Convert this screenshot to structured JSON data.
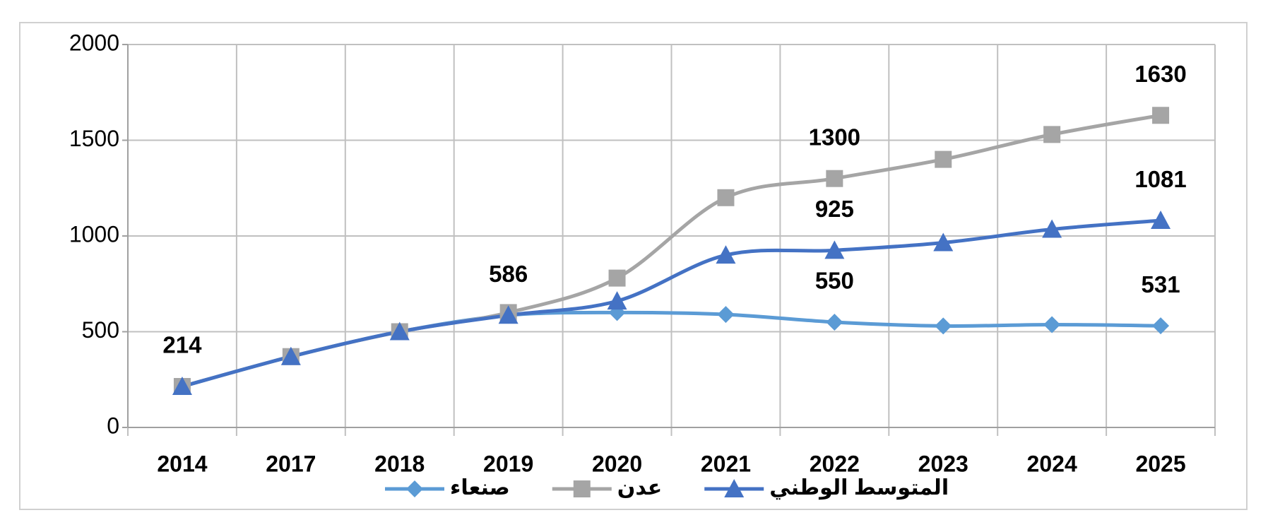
{
  "chart_data": {
    "type": "line",
    "categories": [
      "2014",
      "2017",
      "2018",
      "2019",
      "2020",
      "2021",
      "2022",
      "2023",
      "2024",
      "2025"
    ],
    "series": [
      {
        "name": "صنعاء",
        "color": "#5b9bd5",
        "marker": "diamond",
        "values": [
          214,
          370,
          500,
          586,
          600,
          590,
          550,
          530,
          537,
          531
        ],
        "value_labels": [
          "214",
          null,
          null,
          "586",
          null,
          null,
          "550",
          null,
          null,
          "531"
        ]
      },
      {
        "name": "عدن",
        "color": "#a5a5a5",
        "marker": "square",
        "values": [
          214,
          370,
          500,
          600,
          780,
          1200,
          1300,
          1400,
          1530,
          1630
        ],
        "value_labels": [
          null,
          null,
          null,
          null,
          null,
          null,
          "1300",
          null,
          null,
          "1630"
        ]
      },
      {
        "name": "المتوسط الوطني",
        "color": "#4472c4",
        "marker": "triangle",
        "values": [
          214,
          370,
          500,
          586,
          660,
          900,
          925,
          965,
          1035,
          1081
        ],
        "value_labels": [
          null,
          null,
          null,
          null,
          null,
          null,
          "925",
          null,
          null,
          "1081"
        ]
      }
    ],
    "ylim": [
      0,
      2000
    ],
    "yticks": [
      0,
      500,
      1000,
      1500,
      2000
    ],
    "grid": true,
    "legend": "bottom"
  }
}
